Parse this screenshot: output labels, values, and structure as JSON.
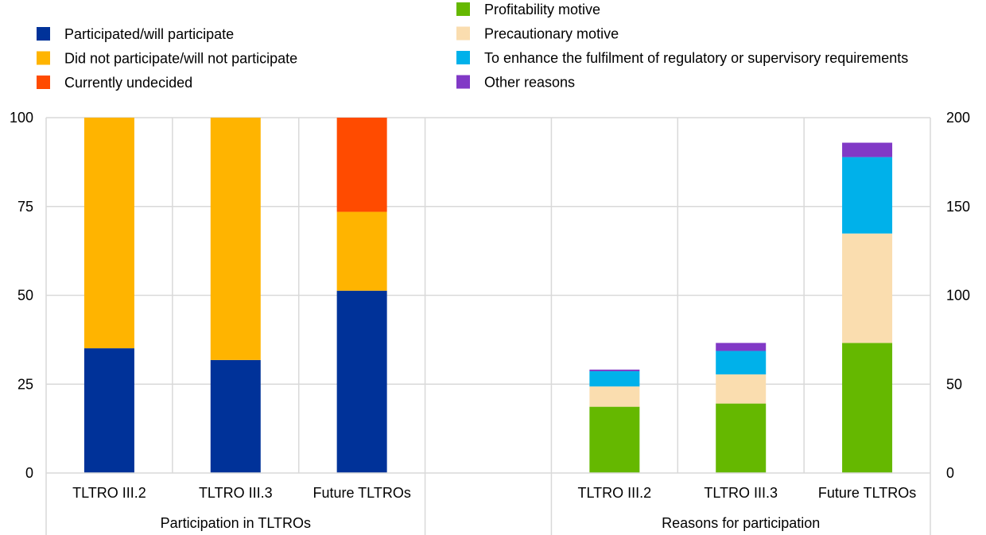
{
  "chart_data": {
    "type": "bar",
    "stacked": true,
    "left_axis": {
      "min": 0,
      "max": 100,
      "ticks": [
        0,
        25,
        50,
        75,
        100
      ]
    },
    "right_axis": {
      "min": 0,
      "max": 200,
      "ticks": [
        0,
        50,
        100,
        150,
        200
      ]
    },
    "grid": true,
    "legend_left": [
      {
        "name": "Participated/will participate",
        "color": "#003299"
      },
      {
        "name": "Did not participate/will not participate",
        "color": "#FFB400"
      },
      {
        "name": "Currently undecided",
        "color": "#FF4B00"
      }
    ],
    "legend_right": [
      {
        "name": "Profitability motive",
        "color": "#65B800"
      },
      {
        "name": "Precautionary motive",
        "color": "#FADDAF"
      },
      {
        "name": "To enhance the fulfilment of regulatory or supervisory requirements",
        "color": "#00B1EA"
      },
      {
        "name": "Other reasons",
        "color": "#8139C6"
      }
    ],
    "groups": [
      {
        "label": "Participation in TLTROs",
        "axis": "left",
        "categories": [
          "TLTRO III.2",
          "TLTRO III.3",
          "Future TLTROs"
        ],
        "series": [
          {
            "name": "Participated/will participate",
            "color": "#003299",
            "values": [
              35.1,
              31.8,
              51.3
            ]
          },
          {
            "name": "Did not participate/will not participate",
            "color": "#FFB400",
            "values": [
              64.9,
              68.2,
              22.2
            ]
          },
          {
            "name": "Currently undecided",
            "color": "#FF4B00",
            "values": [
              0,
              0,
              26.5
            ]
          }
        ]
      },
      {
        "label": "Reasons for participation",
        "axis": "right",
        "categories": [
          "TLTRO III.2",
          "TLTRO III.3",
          "Future TLTROs"
        ],
        "series": [
          {
            "name": "Profitability motive",
            "color": "#65B800",
            "values": [
              37.3,
              39.1,
              73.2
            ]
          },
          {
            "name": "Precautionary motive",
            "color": "#FADDAF",
            "values": [
              11.4,
              16.4,
              61.6
            ]
          },
          {
            "name": "To enhance the fulfilment of regulatory or supervisory requirements",
            "color": "#00B1EA",
            "values": [
              8.6,
              13.2,
              43.0
            ]
          },
          {
            "name": "Other reasons",
            "color": "#8139C6",
            "values": [
              0.9,
              4.5,
              8.1
            ]
          }
        ]
      }
    ]
  }
}
